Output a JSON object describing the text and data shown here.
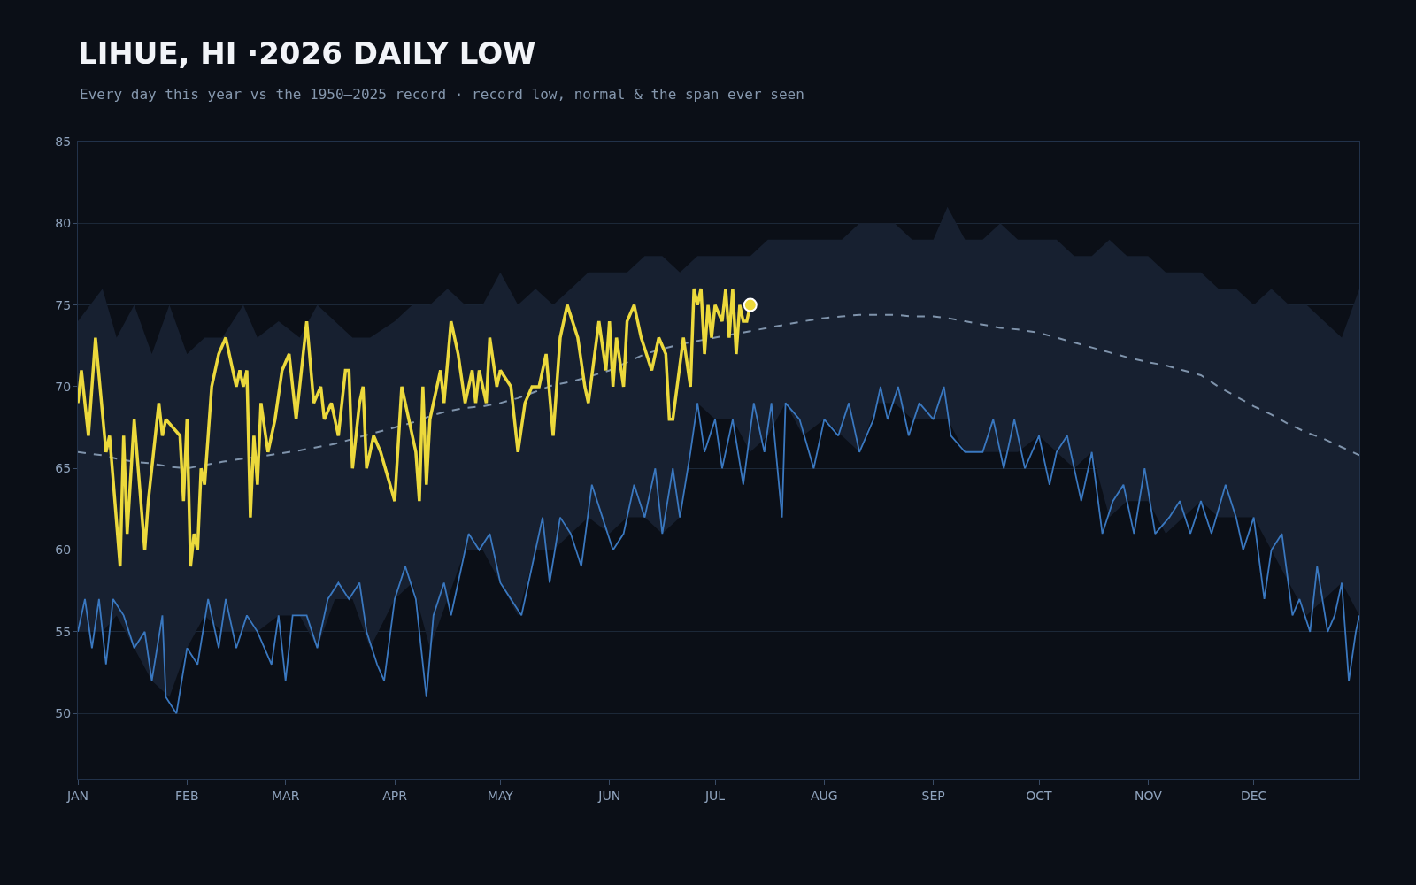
{
  "chart_data": {
    "type": "line",
    "title": "LIHUE, HI ·2026 DAILY LOW",
    "subtitle": "Every day this year vs the 1950–2025 record · record low, normal & the span ever seen",
    "xlim": [
      "2026-01-01",
      "2026-12-31"
    ],
    "xticks": [
      {
        "value": "2026-01-01",
        "label": "JAN"
      },
      {
        "value": "2026-02-01",
        "label": "FEB"
      },
      {
        "value": "2026-03-01",
        "label": "MAR"
      },
      {
        "value": "2026-04-01",
        "label": "APR"
      },
      {
        "value": "2026-05-01",
        "label": "MAY"
      },
      {
        "value": "2026-06-01",
        "label": "JUN"
      },
      {
        "value": "2026-07-01",
        "label": "JUL"
      },
      {
        "value": "2026-08-01",
        "label": "AUG"
      },
      {
        "value": "2026-09-01",
        "label": "SEP"
      },
      {
        "value": "2026-10-01",
        "label": "OCT"
      },
      {
        "value": "2026-11-01",
        "label": "NOV"
      },
      {
        "value": "2026-12-01",
        "label": "DEC"
      }
    ],
    "ylim": [
      46,
      85
    ],
    "yticks": [
      50,
      55,
      60,
      65,
      70,
      75,
      80,
      85
    ],
    "grid": "y",
    "series": [
      {
        "color": "#3a78c0",
        "x": [
          "2026-01-01",
          "2026-01-03",
          "2026-01-05",
          "2026-01-07",
          "2026-01-09",
          "2026-01-11",
          "2026-01-14",
          "2026-01-17",
          "2026-01-20",
          "2026-01-22",
          "2026-01-25",
          "2026-01-26",
          "2026-01-29",
          "2026-02-01",
          "2026-02-04",
          "2026-02-07",
          "2026-02-10",
          "2026-02-12",
          "2026-02-15",
          "2026-02-18",
          "2026-02-21",
          "2026-02-25",
          "2026-02-27",
          "2026-03-01",
          "2026-03-03",
          "2026-03-07",
          "2026-03-10",
          "2026-03-13",
          "2026-03-16",
          "2026-03-19",
          "2026-03-22",
          "2026-03-24",
          "2026-03-27",
          "2026-03-29",
          "2026-04-01",
          "2026-04-04",
          "2026-04-07",
          "2026-04-10",
          "2026-04-12",
          "2026-04-15",
          "2026-04-17",
          "2026-04-20",
          "2026-04-22",
          "2026-04-25",
          "2026-04-28",
          "2026-05-01",
          "2026-05-04",
          "2026-05-07",
          "2026-05-10",
          "2026-05-13",
          "2026-05-15",
          "2026-05-18",
          "2026-05-21",
          "2026-05-24",
          "2026-05-27",
          "2026-05-30",
          "2026-06-02",
          "2026-06-05",
          "2026-06-08",
          "2026-06-11",
          "2026-06-14",
          "2026-06-16",
          "2026-06-19",
          "2026-06-21",
          "2026-06-24",
          "2026-06-26",
          "2026-06-28",
          "2026-07-01",
          "2026-07-03",
          "2026-07-06",
          "2026-07-09",
          "2026-07-12",
          "2026-07-15",
          "2026-07-17",
          "2026-07-20",
          "2026-07-21",
          "2026-07-25",
          "2026-07-29",
          "2026-08-01",
          "2026-08-05",
          "2026-08-08",
          "2026-08-11",
          "2026-08-15",
          "2026-08-17",
          "2026-08-19",
          "2026-08-22",
          "2026-08-25",
          "2026-08-28",
          "2026-09-01",
          "2026-09-04",
          "2026-09-06",
          "2026-09-10",
          "2026-09-15",
          "2026-09-18",
          "2026-09-21",
          "2026-09-24",
          "2026-09-27",
          "2026-10-01",
          "2026-10-04",
          "2026-10-06",
          "2026-10-09",
          "2026-10-13",
          "2026-10-16",
          "2026-10-19",
          "2026-10-22",
          "2026-10-25",
          "2026-10-28",
          "2026-10-31",
          "2026-11-03",
          "2026-11-07",
          "2026-11-10",
          "2026-11-13",
          "2026-11-16",
          "2026-11-19",
          "2026-11-23",
          "2026-11-26",
          "2026-11-28",
          "2026-12-01",
          "2026-12-04",
          "2026-12-06",
          "2026-12-09",
          "2026-12-12",
          "2026-12-14",
          "2026-12-17",
          "2026-12-19",
          "2026-12-22",
          "2026-12-24",
          "2026-12-26",
          "2026-12-28",
          "2026-12-30",
          "2026-12-31"
        ],
        "values": [
          55,
          57,
          54,
          57,
          53,
          57,
          56,
          54,
          55,
          52,
          56,
          51,
          50,
          54,
          53,
          57,
          54,
          57,
          54,
          56,
          55,
          53,
          56,
          52,
          56,
          56,
          54,
          57,
          58,
          57,
          58,
          55,
          53,
          52,
          57,
          59,
          57,
          51,
          56,
          58,
          56,
          59,
          61,
          60,
          61,
          58,
          57,
          56,
          59,
          62,
          58,
          62,
          61,
          59,
          64,
          62,
          60,
          61,
          64,
          62,
          65,
          61,
          65,
          62,
          66,
          69,
          66,
          68,
          65,
          68,
          64,
          69,
          66,
          69,
          62,
          69,
          68,
          65,
          68,
          67,
          69,
          66,
          68,
          70,
          68,
          70,
          67,
          69,
          68,
          70,
          67,
          66,
          66,
          68,
          65,
          68,
          65,
          67,
          64,
          66,
          67,
          63,
          66,
          61,
          63,
          64,
          61,
          65,
          61,
          62,
          63,
          61,
          63,
          61,
          64,
          62,
          60,
          62,
          57,
          60,
          61,
          56,
          57,
          55,
          59,
          55,
          56,
          58,
          52,
          55,
          56
        ]
      },
      {
        "color": "#7f93ab",
        "line_style": "dashed",
        "x": [
          "2026-01-01",
          "2026-01-08",
          "2026-01-12",
          "2026-01-17",
          "2026-01-22",
          "2026-01-27",
          "2026-02-01",
          "2026-02-06",
          "2026-02-11",
          "2026-02-17",
          "2026-02-21",
          "2026-02-27",
          "2026-03-05",
          "2026-03-10",
          "2026-03-15",
          "2026-03-20",
          "2026-03-25",
          "2026-04-01",
          "2026-04-06",
          "2026-04-11",
          "2026-04-16",
          "2026-04-21",
          "2026-04-26",
          "2026-05-01",
          "2026-05-06",
          "2026-05-11",
          "2026-05-16",
          "2026-05-21",
          "2026-05-26",
          "2026-06-01",
          "2026-06-06",
          "2026-06-11",
          "2026-06-16",
          "2026-06-21",
          "2026-06-26",
          "2026-07-01",
          "2026-07-06",
          "2026-07-11",
          "2026-07-16",
          "2026-07-21",
          "2026-07-26",
          "2026-08-01",
          "2026-08-06",
          "2026-08-11",
          "2026-08-16",
          "2026-08-21",
          "2026-08-26",
          "2026-09-01",
          "2026-09-05",
          "2026-09-10",
          "2026-09-15",
          "2026-09-20",
          "2026-09-25",
          "2026-10-01",
          "2026-10-06",
          "2026-10-11",
          "2026-10-16",
          "2026-10-21",
          "2026-10-26",
          "2026-11-01",
          "2026-11-06",
          "2026-11-11",
          "2026-11-16",
          "2026-11-21",
          "2026-11-26",
          "2026-12-01",
          "2026-12-06",
          "2026-12-11",
          "2026-12-16",
          "2026-12-21",
          "2026-12-26",
          "2026-12-31"
        ],
        "lower": [
          55,
          55,
          56,
          54,
          52,
          51,
          54,
          56,
          55,
          55,
          55,
          56,
          56,
          54,
          57,
          57,
          54,
          57,
          58,
          54,
          57,
          60,
          60,
          58,
          56,
          60,
          60,
          61,
          62,
          61,
          62,
          62,
          61,
          62,
          69,
          68,
          68,
          66,
          67,
          69,
          67,
          68,
          67,
          66,
          69,
          69,
          68,
          68,
          68,
          66,
          66,
          66,
          66,
          67,
          66,
          65,
          66,
          62,
          63,
          63,
          61,
          62,
          63,
          62,
          62,
          62,
          60,
          58,
          56,
          57,
          58,
          56
        ],
        "upper": [
          74,
          76,
          73,
          75,
          72,
          75,
          72,
          73,
          73,
          75,
          73,
          74,
          73,
          75,
          74,
          73,
          73,
          74,
          75,
          75,
          76,
          75,
          75,
          77,
          75,
          76,
          75,
          76,
          77,
          77,
          77,
          78,
          78,
          77,
          78,
          78,
          78,
          78,
          79,
          79,
          79,
          79,
          79,
          80,
          80,
          80,
          79,
          79,
          81,
          79,
          79,
          80,
          79,
          79,
          79,
          78,
          78,
          79,
          78,
          78,
          77,
          77,
          77,
          76,
          76,
          75,
          76,
          75,
          75,
          74,
          73,
          76
        ],
        "values": [
          66,
          65.8,
          65.6,
          65.4,
          65.3,
          65.1,
          65,
          65.2,
          65.4,
          65.6,
          65.7,
          65.9,
          66.1,
          66.3,
          66.5,
          66.8,
          67.1,
          67.5,
          67.8,
          68.2,
          68.5,
          68.7,
          68.8,
          69,
          69.3,
          69.7,
          70.1,
          70.3,
          70.6,
          71,
          71.5,
          72,
          72.3,
          72.6,
          72.8,
          73,
          73.2,
          73.4,
          73.6,
          73.8,
          74,
          74.2,
          74.3,
          74.4,
          74.4,
          74.4,
          74.3,
          74.3,
          74.2,
          74,
          73.8,
          73.6,
          73.5,
          73.3,
          73,
          72.7,
          72.4,
          72.1,
          71.8,
          71.5,
          71.3,
          71,
          70.7,
          70,
          69.4,
          68.8,
          68.3,
          67.7,
          67.2,
          66.8,
          66.3,
          65.8
        ]
      },
      {
        "color": "#ecd93c",
        "x": [
          "2026-01-01",
          "2026-01-02",
          "2026-01-04",
          "2026-01-06",
          "2026-01-09",
          "2026-01-10",
          "2026-01-13",
          "2026-01-14",
          "2026-01-15",
          "2026-01-17",
          "2026-01-20",
          "2026-01-21",
          "2026-01-24",
          "2026-01-25",
          "2026-01-26",
          "2026-01-30",
          "2026-01-31",
          "2026-02-01",
          "2026-02-02",
          "2026-02-03",
          "2026-02-04",
          "2026-02-05",
          "2026-02-06",
          "2026-02-08",
          "2026-02-10",
          "2026-02-12",
          "2026-02-15",
          "2026-02-16",
          "2026-02-17",
          "2026-02-18",
          "2026-02-19",
          "2026-02-20",
          "2026-02-21",
          "2026-02-22",
          "2026-02-24",
          "2026-02-26",
          "2026-02-28",
          "2026-03-02",
          "2026-03-04",
          "2026-03-07",
          "2026-03-09",
          "2026-03-11",
          "2026-03-12",
          "2026-03-14",
          "2026-03-16",
          "2026-03-18",
          "2026-03-19",
          "2026-03-20",
          "2026-03-22",
          "2026-03-23",
          "2026-03-24",
          "2026-03-26",
          "2026-03-28",
          "2026-04-01",
          "2026-04-03",
          "2026-04-05",
          "2026-04-07",
          "2026-04-08",
          "2026-04-09",
          "2026-04-10",
          "2026-04-11",
          "2026-04-14",
          "2026-04-15",
          "2026-04-17",
          "2026-04-19",
          "2026-04-21",
          "2026-04-23",
          "2026-04-24",
          "2026-04-25",
          "2026-04-27",
          "2026-04-28",
          "2026-04-30",
          "2026-05-01",
          "2026-05-04",
          "2026-05-06",
          "2026-05-08",
          "2026-05-10",
          "2026-05-12",
          "2026-05-14",
          "2026-05-16",
          "2026-05-18",
          "2026-05-20",
          "2026-05-23",
          "2026-05-25",
          "2026-05-26",
          "2026-05-29",
          "2026-05-31",
          "2026-06-01",
          "2026-06-02",
          "2026-06-03",
          "2026-06-05",
          "2026-06-06",
          "2026-06-08",
          "2026-06-10",
          "2026-06-13",
          "2026-06-15",
          "2026-06-17",
          "2026-06-18",
          "2026-06-19",
          "2026-06-22",
          "2026-06-24",
          "2026-06-25",
          "2026-06-26",
          "2026-06-27",
          "2026-06-28",
          "2026-06-29",
          "2026-06-30",
          "2026-07-01",
          "2026-07-03",
          "2026-07-04",
          "2026-07-05",
          "2026-07-06",
          "2026-07-07",
          "2026-07-08",
          "2026-07-09",
          "2026-07-10",
          "2026-07-11"
        ],
        "values": [
          69,
          71,
          67,
          73,
          66,
          67,
          59,
          67,
          61,
          68,
          60,
          63,
          69,
          67,
          68,
          67,
          63,
          68,
          59,
          61,
          60,
          65,
          64,
          70,
          72,
          73,
          70,
          71,
          70,
          71,
          62,
          67,
          64,
          69,
          66,
          68,
          71,
          72,
          68,
          74,
          69,
          70,
          68,
          69,
          67,
          71,
          71,
          65,
          69,
          70,
          65,
          67,
          66,
          63,
          70,
          68,
          66,
          63,
          70,
          64,
          68,
          71,
          69,
          74,
          72,
          69,
          71,
          69,
          71,
          69,
          73,
          70,
          71,
          70,
          66,
          69,
          70,
          70,
          72,
          67,
          73,
          75,
          73,
          70,
          69,
          74,
          71,
          74,
          70,
          73,
          70,
          74,
          75,
          73,
          71,
          73,
          72,
          68,
          68,
          73,
          70,
          76,
          75,
          76,
          72,
          75,
          73,
          75,
          74,
          76,
          73,
          76,
          72,
          75,
          74,
          74,
          75
        ]
      },
      {
        "type": "scatter",
        "color": "#ecd93c",
        "x": [
          "2026-07-11"
        ],
        "values": [
          75
        ]
      }
    ]
  }
}
